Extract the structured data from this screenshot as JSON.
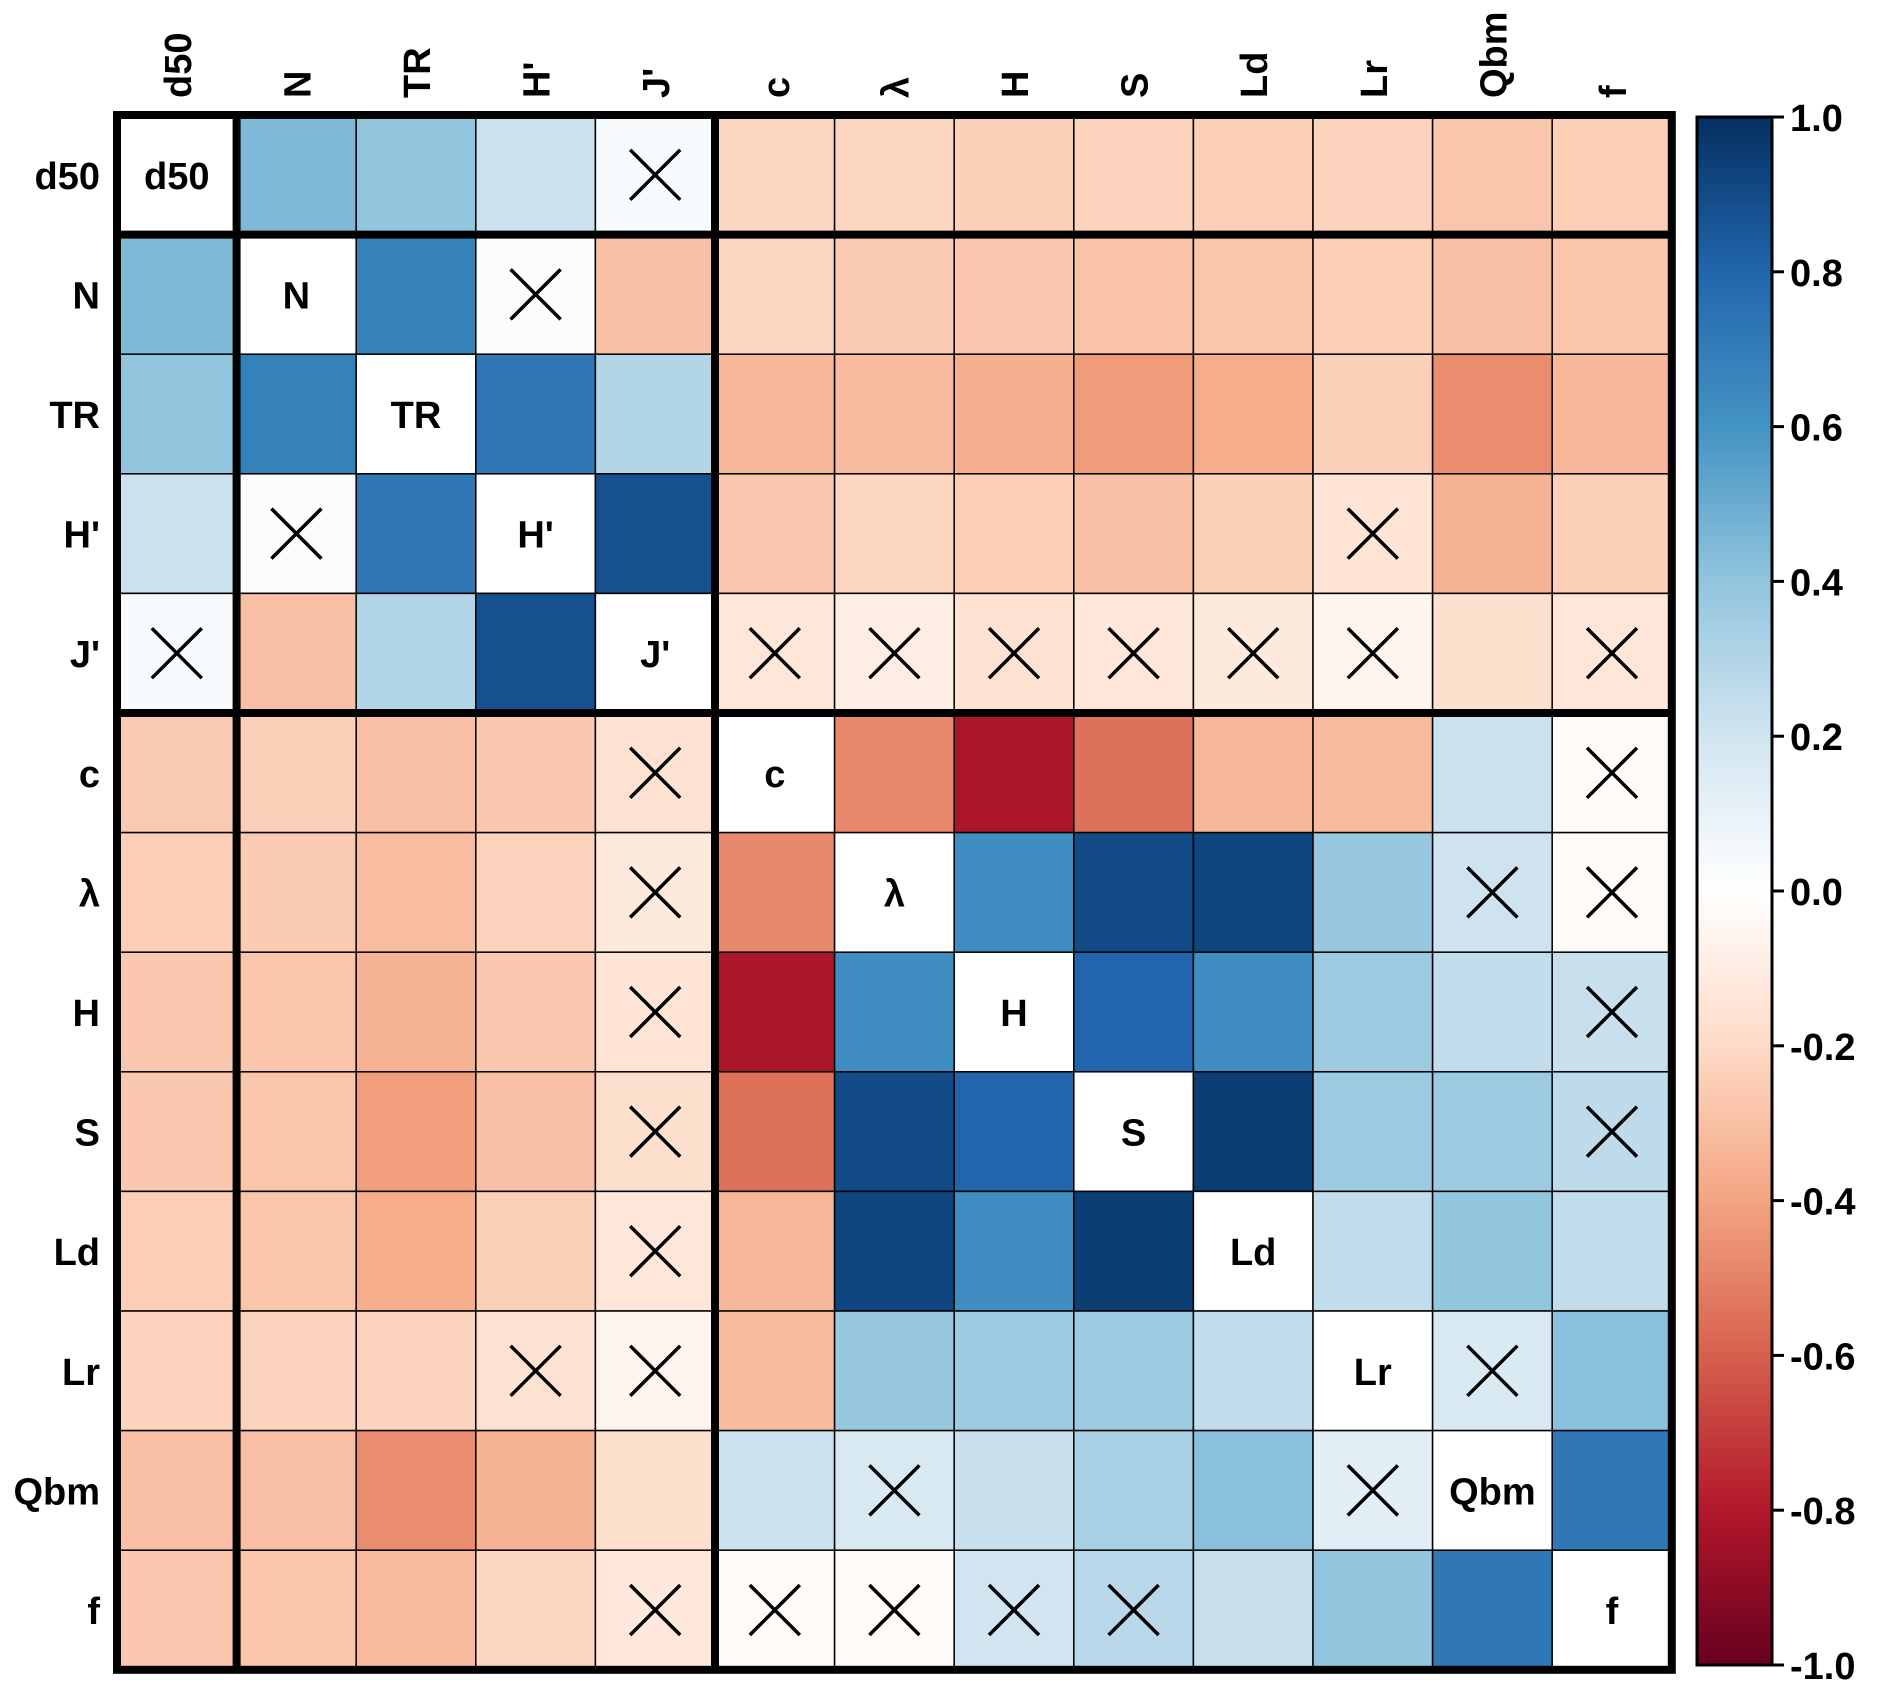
{
  "chart_data": {
    "type": "heatmap",
    "labels": [
      "d50",
      "N",
      "TR",
      "H'",
      "J'",
      "c",
      "λ",
      "H",
      "S",
      "Ld",
      "Lr",
      "Qbm",
      "f"
    ],
    "values": [
      [
        null,
        0.45,
        0.4,
        0.22,
        0.03,
        -0.22,
        -0.22,
        -0.24,
        -0.23,
        -0.25,
        -0.23,
        -0.28,
        -0.25
      ],
      [
        0.45,
        null,
        0.68,
        0.02,
        -0.3,
        -0.22,
        -0.26,
        -0.27,
        -0.29,
        -0.28,
        -0.25,
        -0.3,
        -0.28
      ],
      [
        0.4,
        0.68,
        null,
        0.72,
        0.3,
        -0.33,
        -0.32,
        -0.36,
        -0.43,
        -0.37,
        -0.24,
        -0.47,
        -0.33
      ],
      [
        0.22,
        0.02,
        0.72,
        null,
        0.88,
        -0.27,
        -0.22,
        -0.25,
        -0.3,
        -0.24,
        -0.15,
        -0.35,
        -0.24
      ],
      [
        0.03,
        -0.3,
        0.3,
        0.88,
        null,
        -0.14,
        -0.1,
        -0.16,
        -0.14,
        -0.12,
        -0.06,
        -0.18,
        -0.14
      ],
      [
        -0.26,
        -0.24,
        -0.3,
        -0.27,
        -0.16,
        null,
        -0.48,
        -0.82,
        -0.55,
        -0.33,
        -0.32,
        0.22,
        -0.02
      ],
      [
        -0.25,
        -0.26,
        -0.31,
        -0.23,
        -0.12,
        -0.48,
        null,
        0.62,
        0.9,
        0.92,
        0.38,
        0.21,
        -0.02
      ],
      [
        -0.27,
        -0.28,
        -0.35,
        -0.27,
        -0.15,
        -0.82,
        0.62,
        null,
        0.8,
        0.62,
        0.37,
        0.25,
        0.23
      ],
      [
        -0.27,
        -0.28,
        -0.42,
        -0.3,
        -0.18,
        -0.55,
        0.9,
        0.8,
        null,
        0.95,
        0.37,
        0.37,
        0.26
      ],
      [
        -0.25,
        -0.28,
        -0.37,
        -0.24,
        -0.14,
        -0.33,
        0.92,
        0.62,
        0.95,
        null,
        0.25,
        0.4,
        0.25
      ],
      [
        -0.23,
        -0.23,
        -0.23,
        -0.16,
        -0.06,
        -0.32,
        0.38,
        0.37,
        0.37,
        0.25,
        null,
        0.17,
        0.42
      ],
      [
        -0.3,
        -0.3,
        -0.47,
        -0.35,
        -0.18,
        0.22,
        0.17,
        0.23,
        0.33,
        0.42,
        0.13,
        null,
        0.72
      ],
      [
        -0.27,
        -0.28,
        -0.32,
        -0.22,
        -0.13,
        -0.02,
        -0.02,
        0.2,
        0.28,
        0.23,
        0.4,
        0.72,
        null
      ]
    ],
    "not_significant": [
      [
        0,
        4
      ],
      [
        1,
        3
      ],
      [
        3,
        1
      ],
      [
        3,
        10
      ],
      [
        4,
        0
      ],
      [
        4,
        5
      ],
      [
        4,
        6
      ],
      [
        4,
        7
      ],
      [
        4,
        8
      ],
      [
        4,
        9
      ],
      [
        4,
        10
      ],
      [
        4,
        12
      ],
      [
        5,
        4
      ],
      [
        5,
        12
      ],
      [
        6,
        4
      ],
      [
        6,
        11
      ],
      [
        6,
        12
      ],
      [
        7,
        4
      ],
      [
        7,
        12
      ],
      [
        8,
        4
      ],
      [
        8,
        12
      ],
      [
        9,
        4
      ],
      [
        10,
        3
      ],
      [
        10,
        4
      ],
      [
        10,
        11
      ],
      [
        11,
        6
      ],
      [
        11,
        10
      ],
      [
        12,
        4
      ],
      [
        12,
        5
      ],
      [
        12,
        6
      ],
      [
        12,
        7
      ],
      [
        12,
        8
      ]
    ],
    "group_boundaries_after_index": [
      0,
      4
    ],
    "colorbar": {
      "range": [
        -1.0,
        1.0
      ],
      "ticks": [
        "1.0",
        "0.8",
        "0.6",
        "0.4",
        "0.2",
        "0.0",
        "-0.2",
        "-0.4",
        "-0.6",
        "-0.8",
        "-1.0"
      ]
    },
    "colors": {
      "scale": [
        "#67001f",
        "#b2182b",
        "#d6604d",
        "#f4a582",
        "#fddbc7",
        "#ffffff",
        "#d1e5f0",
        "#92c5de",
        "#4393c3",
        "#2166ac",
        "#053061"
      ]
    }
  }
}
